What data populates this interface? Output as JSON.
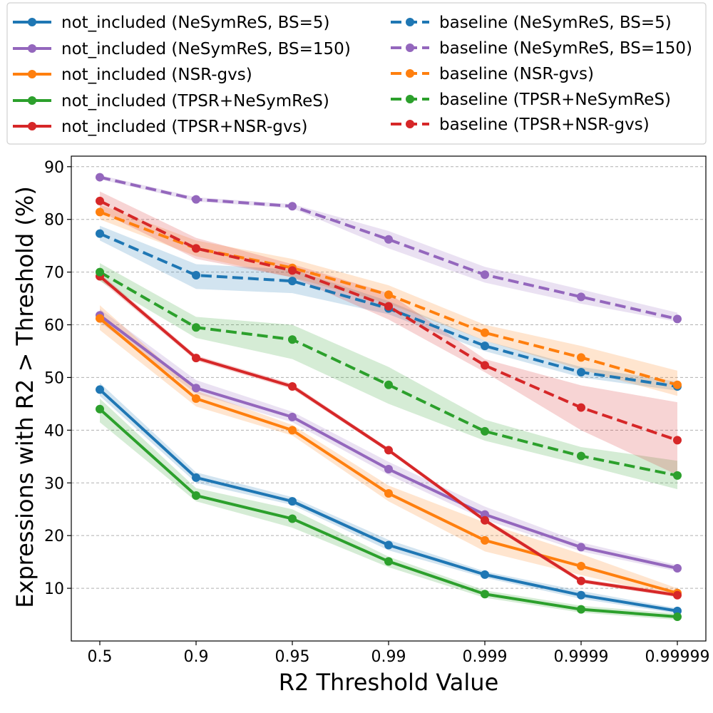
{
  "chart_data": {
    "type": "line",
    "title": "",
    "xlabel": "R2 Threshold Value",
    "ylabel": "Expressions with R2 > Threshold (%)",
    "categories": [
      "0.5",
      "0.9",
      "0.95",
      "0.99",
      "0.999",
      "0.9999",
      "0.99999"
    ],
    "ylim": [
      0,
      92
    ],
    "yticks": [
      "10",
      "20",
      "30",
      "40",
      "50",
      "60",
      "70",
      "80",
      "90"
    ],
    "grid": "horizontal dashed",
    "legend_position": "top, two columns",
    "series": [
      {
        "name": "not_included (NeSymReS, BS=5)",
        "color": "#1f77b4",
        "style": "solid",
        "values": [
          47.7,
          31.0,
          26.5,
          18.2,
          12.6,
          8.7,
          5.7
        ],
        "lower": [
          46.5,
          30.0,
          25.8,
          17.2,
          12.0,
          8.0,
          5.2
        ],
        "upper": [
          49.0,
          32.0,
          27.3,
          19.2,
          13.2,
          9.5,
          6.2
        ]
      },
      {
        "name": "not_included (NeSymReS, BS=150)",
        "color": "#9467bd",
        "style": "solid",
        "values": [
          61.8,
          48.0,
          42.5,
          32.6,
          24.0,
          17.8,
          13.8
        ],
        "lower": [
          60.5,
          47.0,
          41.5,
          31.5,
          23.0,
          17.0,
          13.2
        ],
        "upper": [
          63.0,
          49.5,
          43.5,
          34.0,
          25.5,
          18.7,
          14.4
        ]
      },
      {
        "name": "not_included (NSR-gvs)",
        "color": "#ff7f0e",
        "style": "solid",
        "values": [
          61.2,
          46.0,
          40.0,
          28.0,
          19.1,
          14.2,
          9.1
        ],
        "lower": [
          59.0,
          44.5,
          39.0,
          26.5,
          17.0,
          12.5,
          8.3
        ],
        "upper": [
          63.7,
          47.5,
          41.0,
          29.5,
          22.5,
          16.5,
          10.0
        ]
      },
      {
        "name": "not_included (TPSR+NeSymReS)",
        "color": "#2ca02c",
        "style": "solid",
        "values": [
          44.0,
          27.6,
          23.2,
          15.1,
          8.9,
          6.0,
          4.6
        ],
        "lower": [
          41.5,
          26.5,
          21.5,
          14.0,
          8.2,
          5.4,
          4.0
        ],
        "upper": [
          46.0,
          29.0,
          25.0,
          16.0,
          9.6,
          6.7,
          5.2
        ]
      },
      {
        "name": "not_included (TPSR+NSR-gvs)",
        "color": "#d62728",
        "style": "solid",
        "values": [
          69.2,
          53.7,
          48.3,
          36.2,
          22.9,
          11.4,
          8.7
        ],
        "lower": [
          68.5,
          53.2,
          47.8,
          35.8,
          22.5,
          11.0,
          8.3
        ],
        "upper": [
          69.8,
          54.2,
          48.8,
          36.6,
          23.3,
          11.8,
          9.1
        ]
      },
      {
        "name": "baseline (NeSymReS, BS=5)",
        "color": "#1f77b4",
        "style": "dashed",
        "values": [
          77.3,
          69.4,
          68.3,
          63.1,
          56.0,
          51.0,
          48.3
        ],
        "lower": [
          76.0,
          66.8,
          66.0,
          62.0,
          55.0,
          50.0,
          47.5
        ],
        "upper": [
          78.8,
          71.5,
          70.5,
          64.5,
          57.0,
          52.0,
          49.2
        ]
      },
      {
        "name": "baseline (NeSymReS, BS=150)",
        "color": "#9467bd",
        "style": "dashed",
        "values": [
          88.0,
          83.8,
          82.5,
          76.2,
          69.5,
          65.3,
          61.1
        ],
        "lower": [
          87.6,
          83.4,
          82.1,
          74.5,
          68.0,
          64.0,
          60.6
        ],
        "upper": [
          88.4,
          84.2,
          82.9,
          77.8,
          71.0,
          66.7,
          62.3
        ]
      },
      {
        "name": "baseline (NSR-gvs)",
        "color": "#ff7f0e",
        "style": "dashed",
        "values": [
          81.4,
          74.5,
          70.8,
          65.7,
          58.5,
          53.8,
          48.6
        ],
        "lower": [
          80.0,
          73.0,
          69.0,
          64.0,
          57.0,
          51.5,
          46.5
        ],
        "upper": [
          82.8,
          76.0,
          72.5,
          67.5,
          60.0,
          56.0,
          51.3
        ]
      },
      {
        "name": "baseline (TPSR+NeSymReS)",
        "color": "#2ca02c",
        "style": "dashed",
        "values": [
          70.0,
          59.5,
          57.2,
          48.6,
          39.8,
          35.1,
          31.4
        ],
        "lower": [
          68.3,
          57.5,
          53.5,
          45.0,
          38.0,
          33.5,
          28.8
        ],
        "upper": [
          71.7,
          61.5,
          60.0,
          52.0,
          42.0,
          36.8,
          34.2
        ]
      },
      {
        "name": "baseline (TPSR+NSR-gvs)",
        "color": "#d62728",
        "style": "dashed",
        "values": [
          83.5,
          74.5,
          70.3,
          63.5,
          52.3,
          44.3,
          38.1
        ],
        "lower": [
          81.5,
          72.5,
          69.0,
          61.0,
          51.0,
          40.0,
          31.5
        ],
        "upper": [
          85.3,
          76.5,
          71.5,
          66.0,
          53.5,
          48.5,
          45.3
        ]
      }
    ]
  }
}
